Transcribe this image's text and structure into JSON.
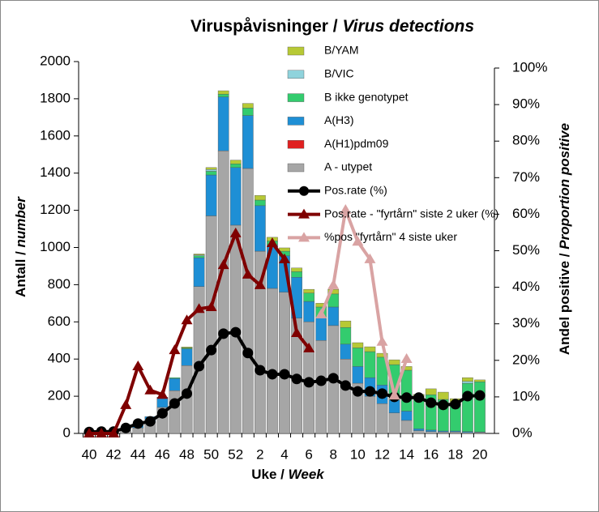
{
  "chart_data": {
    "type": "bar",
    "title": {
      "main": "Viruspåvisninger / ",
      "italic": "Virus detections"
    },
    "x_label": {
      "main": "Uke / ",
      "italic": "Week"
    },
    "y_label": {
      "main": "Antall / ",
      "italic": "number"
    },
    "y2_label": {
      "main": "Andel positive / ",
      "italic": "Proportion positive"
    },
    "categories": [
      40,
      null,
      42,
      null,
      44,
      null,
      46,
      null,
      48,
      null,
      50,
      null,
      52,
      null,
      2,
      null,
      4,
      null,
      6,
      null,
      8,
      null,
      10,
      null,
      12,
      null,
      14,
      null,
      16,
      null,
      18,
      null,
      20
    ],
    "ylim": [
      0,
      2000
    ],
    "yticks": [
      0,
      200,
      400,
      600,
      800,
      1000,
      1200,
      1400,
      1600,
      1800,
      2000
    ],
    "y2lim": [
      0,
      100
    ],
    "y2ticks": [
      {
        "value": 0,
        "label": "0%"
      },
      {
        "value": 10,
        "label": "10%"
      },
      {
        "value": 20,
        "label": "20%"
      },
      {
        "value": 30,
        "label": "30%"
      },
      {
        "value": 40,
        "label": "40%"
      },
      {
        "value": 50,
        "label": "50%"
      },
      {
        "value": 60,
        "label": "60%"
      },
      {
        "value": 70,
        "label": "70%"
      },
      {
        "value": 80,
        "label": "80%"
      },
      {
        "value": 90,
        "label": "90%"
      },
      {
        "value": 100,
        "label": "100%"
      }
    ],
    "stacked": true,
    "legend": "upper center",
    "series": [
      {
        "name": "A - utypet",
        "kind": "bar",
        "color": "#a6a6a6",
        "values": [
          5,
          5,
          5,
          15,
          30,
          60,
          140,
          230,
          365,
          790,
          1170,
          1520,
          1120,
          1425,
          980,
          780,
          760,
          620,
          600,
          500,
          580,
          400,
          270,
          200,
          160,
          110,
          70,
          15,
          10,
          8,
          8,
          5,
          5
        ]
      },
      {
        "name": "A(H1)pdm09",
        "kind": "bar",
        "color": "#e02020",
        "values": [
          0,
          0,
          0,
          0,
          0,
          0,
          0,
          0,
          0,
          0,
          0,
          0,
          0,
          0,
          0,
          0,
          0,
          0,
          0,
          0,
          0,
          0,
          0,
          0,
          0,
          0,
          0,
          0,
          0,
          0,
          0,
          0,
          0
        ]
      },
      {
        "name": "A(H3)",
        "kind": "bar",
        "color": "#1e8fd5",
        "values": [
          0,
          0,
          0,
          0,
          20,
          30,
          55,
          65,
          90,
          155,
          220,
          290,
          310,
          285,
          245,
          235,
          195,
          220,
          110,
          120,
          100,
          80,
          90,
          100,
          100,
          70,
          50,
          10,
          8,
          5,
          5,
          5,
          3
        ]
      },
      {
        "name": "B ikke genotypet",
        "kind": "bar",
        "color": "#33cc6e",
        "values": [
          0,
          0,
          0,
          0,
          0,
          0,
          0,
          5,
          5,
          10,
          20,
          15,
          20,
          40,
          30,
          20,
          25,
          30,
          45,
          60,
          70,
          90,
          100,
          140,
          150,
          190,
          220,
          170,
          190,
          170,
          145,
          260,
          270
        ]
      },
      {
        "name": "B/VIC",
        "kind": "bar",
        "color": "#8fd3dc",
        "values": [
          0,
          0,
          0,
          0,
          0,
          0,
          0,
          0,
          0,
          5,
          10,
          0,
          0,
          0,
          0,
          0,
          0,
          0,
          0,
          0,
          0,
          0,
          0,
          0,
          0,
          0,
          0,
          0,
          0,
          0,
          0,
          10,
          0
        ]
      },
      {
        "name": "B/YAM",
        "kind": "bar",
        "color": "#b7c935",
        "values": [
          0,
          0,
          0,
          0,
          0,
          0,
          0,
          0,
          5,
          5,
          10,
          18,
          20,
          25,
          25,
          20,
          18,
          20,
          20,
          20,
          25,
          35,
          28,
          26,
          21,
          26,
          20,
          15,
          32,
          39,
          29,
          20,
          10
        ]
      },
      {
        "name": "Pos.rate (%)",
        "kind": "line",
        "axis": "y2",
        "marker": "circle",
        "color": "#000000",
        "values": [
          0.4,
          0.5,
          0.5,
          1.5,
          2.7,
          3.3,
          5.5,
          8.2,
          10.9,
          18.4,
          22.8,
          27.3,
          27.7,
          22,
          17.3,
          16.2,
          16.2,
          14.9,
          14,
          14.4,
          15.1,
          13.1,
          11.5,
          11.5,
          10.9,
          10,
          9.8,
          9.8,
          8.4,
          7.8,
          8,
          10.2,
          10.4
        ]
      },
      {
        "name": "Pos.rate - \"fyrtårn\" siste 2 uker (%)",
        "kind": "line",
        "axis": "y2",
        "marker": "triangle",
        "color": "#7f0000",
        "values": [
          0,
          0,
          0,
          7.8,
          18.4,
          11.8,
          10.6,
          22.8,
          31,
          34.1,
          34.6,
          46.1,
          54.8,
          43.5,
          40.6,
          52.1,
          47.7,
          27.5,
          23.3,
          null,
          null,
          null,
          null,
          null,
          null,
          null,
          null,
          null,
          null,
          null,
          null,
          null,
          null
        ]
      },
      {
        "name": "%pos \"fyrtårn\" 4 siste uker",
        "kind": "line",
        "axis": "y2",
        "marker": "triangle",
        "color": "#d9a3a3",
        "values": [
          null,
          null,
          null,
          null,
          null,
          null,
          null,
          null,
          null,
          null,
          null,
          null,
          null,
          null,
          null,
          null,
          null,
          null,
          null,
          32.6,
          40.6,
          61.2,
          52.5,
          47.7,
          25.1,
          10.4,
          20.4,
          null,
          null,
          null,
          null,
          null,
          null
        ]
      }
    ]
  }
}
